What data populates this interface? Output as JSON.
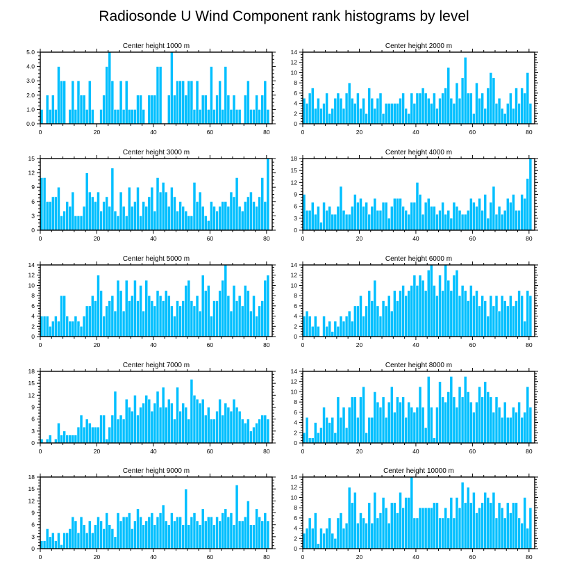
{
  "title": "Radiosonde U Wind Component rank histograms by level",
  "colors": {
    "bar": "#00bfff",
    "bar_edge": "#ffffff",
    "axis": "#000000"
  },
  "chart_data": [
    {
      "type": "bar",
      "title": "Center height 1000 m",
      "xlabel": "",
      "ylabel": "",
      "xlim": [
        0,
        82
      ],
      "ylim": [
        0,
        5
      ],
      "xticks": [
        0,
        20,
        40,
        60,
        80
      ],
      "xtick_labels": [
        "0",
        "20",
        "40",
        "60",
        "80"
      ],
      "yticks": [
        0,
        1,
        2,
        3,
        4,
        5
      ],
      "ytick_labels": [
        "0.0",
        "1.0",
        "2.0",
        "3.0",
        "4.0",
        "5.0"
      ],
      "values": [
        1,
        0,
        2,
        1,
        2,
        1,
        4,
        3,
        3,
        0,
        1,
        3,
        1,
        3,
        2,
        2,
        1,
        3,
        1,
        0,
        0,
        1,
        2,
        4,
        5,
        3,
        1,
        1,
        3,
        1,
        3,
        1,
        1,
        1,
        2,
        2,
        1,
        0,
        2,
        2,
        2,
        4,
        4,
        0,
        0,
        2,
        5,
        2,
        3,
        3,
        3,
        2,
        3,
        3,
        1,
        3,
        1,
        2,
        2,
        1,
        4,
        1,
        2,
        3,
        1,
        4,
        2,
        1,
        2,
        1,
        1,
        0,
        2,
        3,
        1,
        1,
        2,
        1,
        2,
        3,
        1
      ]
    },
    {
      "type": "bar",
      "title": "Center height 2000 m",
      "xlabel": "",
      "ylabel": "",
      "xlim": [
        0,
        82
      ],
      "ylim": [
        0,
        14
      ],
      "xticks": [
        0,
        20,
        40,
        60,
        80
      ],
      "xtick_labels": [
        "0",
        "20",
        "40",
        "60",
        "80"
      ],
      "yticks": [
        0,
        2,
        4,
        6,
        8,
        10,
        12,
        14
      ],
      "ytick_labels": [
        "0",
        "2",
        "4",
        "6",
        "8",
        "10",
        "12",
        "14"
      ],
      "values": [
        5,
        4,
        6,
        7,
        3,
        5,
        3,
        4,
        6,
        2,
        3,
        5,
        6,
        5,
        3,
        6,
        8,
        5,
        4,
        6,
        3,
        5,
        2,
        7,
        5,
        3,
        5,
        6,
        2,
        4,
        4,
        4,
        4,
        4,
        5,
        6,
        3,
        2,
        6,
        4,
        6,
        6,
        7,
        6,
        5,
        4,
        6,
        3,
        5,
        6,
        7,
        11,
        5,
        4,
        8,
        5,
        9,
        13,
        6,
        6,
        2,
        8,
        5,
        6,
        3,
        7,
        10,
        9,
        4,
        5,
        3,
        2,
        4,
        6,
        3,
        7,
        4,
        7,
        6,
        10,
        4
      ]
    },
    {
      "type": "bar",
      "title": "Center height 3000 m",
      "xlabel": "",
      "ylabel": "",
      "xlim": [
        0,
        82
      ],
      "ylim": [
        0,
        15
      ],
      "xticks": [
        0,
        20,
        40,
        60,
        80
      ],
      "xtick_labels": [
        "0",
        "20",
        "40",
        "60",
        "80"
      ],
      "yticks": [
        0,
        3,
        6,
        9,
        12,
        15
      ],
      "ytick_labels": [
        "0",
        "3",
        "6",
        "9",
        "12",
        "15"
      ],
      "values": [
        11,
        11,
        6,
        6,
        7,
        7,
        9,
        3,
        4,
        6,
        5,
        8,
        3,
        3,
        3,
        5,
        12,
        8,
        7,
        6,
        8,
        4,
        6,
        7,
        5,
        13,
        4,
        3,
        8,
        5,
        3,
        9,
        5,
        6,
        9,
        3,
        6,
        5,
        7,
        9,
        4,
        11,
        8,
        10,
        8,
        5,
        9,
        7,
        4,
        6,
        5,
        4,
        3,
        3,
        10,
        6,
        8,
        5,
        3,
        2,
        6,
        5,
        4,
        5,
        6,
        6,
        5,
        8,
        7,
        11,
        5,
        4,
        6,
        7,
        8,
        6,
        5,
        7,
        11,
        6,
        15
      ]
    },
    {
      "type": "bar",
      "title": "Center height 4000 m",
      "xlabel": "",
      "ylabel": "",
      "xlim": [
        0,
        82
      ],
      "ylim": [
        0,
        18
      ],
      "xticks": [
        0,
        20,
        40,
        60,
        80
      ],
      "xtick_labels": [
        "0",
        "20",
        "40",
        "60",
        "80"
      ],
      "yticks": [
        0,
        3,
        6,
        9,
        12,
        15,
        18
      ],
      "ytick_labels": [
        "0",
        "3",
        "6",
        "9",
        "12",
        "15",
        "18"
      ],
      "values": [
        9,
        5,
        5,
        7,
        4,
        6,
        2,
        7,
        5,
        6,
        4,
        4,
        6,
        11,
        5,
        4,
        4,
        6,
        9,
        7,
        8,
        6,
        7,
        4,
        6,
        8,
        5,
        5,
        7,
        7,
        3,
        6,
        8,
        8,
        8,
        6,
        5,
        4,
        7,
        7,
        12,
        9,
        4,
        7,
        8,
        6,
        6,
        4,
        5,
        7,
        4,
        5,
        3,
        7,
        6,
        5,
        4,
        4,
        5,
        8,
        7,
        6,
        8,
        5,
        9,
        3,
        7,
        11,
        4,
        6,
        4,
        5,
        8,
        7,
        9,
        5,
        5,
        9,
        8,
        13,
        18
      ]
    },
    {
      "type": "bar",
      "title": "Center height 5000 m",
      "xlabel": "",
      "ylabel": "",
      "xlim": [
        0,
        82
      ],
      "ylim": [
        0,
        14
      ],
      "xticks": [
        0,
        20,
        40,
        60,
        80
      ],
      "xtick_labels": [
        "0",
        "20",
        "40",
        "60",
        "80"
      ],
      "yticks": [
        0,
        2,
        4,
        6,
        8,
        10,
        12,
        14
      ],
      "ytick_labels": [
        "0",
        "2",
        "4",
        "6",
        "8",
        "10",
        "12",
        "14"
      ],
      "values": [
        4,
        4,
        4,
        2,
        3,
        4,
        3,
        8,
        8,
        4,
        3,
        3,
        4,
        3,
        2,
        4,
        6,
        6,
        8,
        7,
        12,
        9,
        4,
        6,
        7,
        8,
        5,
        11,
        9,
        5,
        11,
        7,
        8,
        11,
        7,
        10,
        5,
        11,
        8,
        7,
        6,
        9,
        8,
        7,
        9,
        8,
        6,
        4,
        7,
        6,
        7,
        10,
        11,
        7,
        6,
        8,
        5,
        12,
        9,
        10,
        4,
        7,
        7,
        9,
        11,
        14,
        8,
        5,
        10,
        7,
        8,
        6,
        10,
        9,
        5,
        8,
        4,
        6,
        7,
        11,
        12
      ]
    },
    {
      "type": "bar",
      "title": "Center height 6000 m",
      "xlabel": "",
      "ylabel": "",
      "xlim": [
        0,
        82
      ],
      "ylim": [
        0,
        14
      ],
      "xticks": [
        0,
        20,
        40,
        60,
        80
      ],
      "xtick_labels": [
        "0",
        "20",
        "40",
        "60",
        "80"
      ],
      "yticks": [
        0,
        2,
        4,
        6,
        8,
        10,
        12,
        14
      ],
      "ytick_labels": [
        "0",
        "2",
        "4",
        "6",
        "8",
        "10",
        "12",
        "14"
      ],
      "values": [
        4,
        5,
        4,
        2,
        4,
        2,
        0,
        4,
        2,
        3,
        1,
        3,
        2,
        4,
        3,
        4,
        5,
        3,
        6,
        6,
        8,
        4,
        6,
        9,
        7,
        11,
        6,
        4,
        7,
        6,
        8,
        5,
        9,
        7,
        9,
        10,
        8,
        9,
        10,
        12,
        10,
        12,
        11,
        9,
        13,
        14,
        10,
        8,
        12,
        9,
        14,
        11,
        9,
        12,
        13,
        8,
        10,
        9,
        7,
        10,
        8,
        9,
        6,
        8,
        7,
        4,
        8,
        6,
        8,
        5,
        8,
        7,
        6,
        8,
        6,
        7,
        9,
        8,
        3,
        9,
        8
      ]
    },
    {
      "type": "bar",
      "title": "Center height 7000 m",
      "xlabel": "",
      "ylabel": "",
      "xlim": [
        0,
        82
      ],
      "ylim": [
        0,
        18
      ],
      "xticks": [
        0,
        20,
        40,
        60,
        80
      ],
      "xtick_labels": [
        "0",
        "20",
        "40",
        "60",
        "80"
      ],
      "yticks": [
        0,
        3,
        6,
        9,
        12,
        15,
        18
      ],
      "ytick_labels": [
        "0",
        "3",
        "6",
        "9",
        "12",
        "15",
        "18"
      ],
      "values": [
        1,
        0,
        1,
        2,
        0,
        1,
        5,
        2,
        3,
        2,
        2,
        2,
        2,
        4,
        7,
        4,
        6,
        5,
        4,
        4,
        4,
        7,
        7,
        1,
        4,
        7,
        13,
        6,
        7,
        6,
        11,
        9,
        8,
        12,
        7,
        9,
        10,
        12,
        11,
        8,
        10,
        13,
        9,
        14,
        9,
        11,
        10,
        6,
        14,
        8,
        10,
        9,
        6,
        16,
        12,
        11,
        10,
        11,
        7,
        9,
        6,
        6,
        8,
        11,
        7,
        10,
        9,
        8,
        11,
        9,
        8,
        6,
        5,
        6,
        3,
        4,
        5,
        6,
        7,
        7,
        6
      ]
    },
    {
      "type": "bar",
      "title": "Center height 8000 m",
      "xlabel": "",
      "ylabel": "",
      "xlim": [
        0,
        82
      ],
      "ylim": [
        0,
        14
      ],
      "xticks": [
        0,
        20,
        40,
        60,
        80
      ],
      "xtick_labels": [
        "0",
        "20",
        "40",
        "60",
        "80"
      ],
      "yticks": [
        0,
        2,
        4,
        6,
        8,
        10,
        12,
        14
      ],
      "ytick_labels": [
        "0",
        "2",
        "4",
        "6",
        "8",
        "10",
        "12",
        "14"
      ],
      "values": [
        2,
        5,
        1,
        1,
        4,
        2,
        3,
        7,
        5,
        4,
        5,
        2,
        9,
        5,
        7,
        3,
        7,
        9,
        9,
        5,
        9,
        11,
        2,
        5,
        5,
        10,
        8,
        7,
        9,
        5,
        8,
        11,
        6,
        9,
        8,
        9,
        5,
        8,
        7,
        6,
        7,
        11,
        7,
        3,
        13,
        7,
        1,
        7,
        12,
        9,
        8,
        10,
        13,
        9,
        7,
        11,
        9,
        13,
        10,
        8,
        6,
        8,
        11,
        9,
        12,
        10,
        9,
        6,
        9,
        7,
        5,
        8,
        5,
        5,
        7,
        6,
        8,
        5,
        6,
        11,
        7
      ]
    },
    {
      "type": "bar",
      "title": "Center height 9000 m",
      "xlabel": "",
      "ylabel": "",
      "xlim": [
        0,
        82
      ],
      "ylim": [
        0,
        18
      ],
      "xticks": [
        0,
        20,
        40,
        60,
        80
      ],
      "xtick_labels": [
        "0",
        "20",
        "40",
        "60",
        "80"
      ],
      "yticks": [
        0,
        3,
        6,
        9,
        12,
        15,
        18
      ],
      "ytick_labels": [
        "0",
        "3",
        "6",
        "9",
        "12",
        "15",
        "18"
      ],
      "values": [
        2,
        2,
        5,
        3,
        4,
        2,
        4,
        1,
        4,
        4,
        5,
        8,
        7,
        4,
        8,
        6,
        4,
        7,
        4,
        6,
        8,
        7,
        5,
        9,
        6,
        5,
        3,
        9,
        7,
        8,
        8,
        9,
        5,
        7,
        10,
        8,
        6,
        7,
        8,
        9,
        6,
        8,
        9,
        11,
        7,
        6,
        9,
        7,
        8,
        8,
        6,
        15,
        6,
        8,
        9,
        7,
        6,
        10,
        7,
        8,
        8,
        6,
        8,
        7,
        9,
        10,
        8,
        9,
        6,
        16,
        7,
        7,
        8,
        12,
        6,
        6,
        10,
        8,
        7,
        9,
        7
      ]
    },
    {
      "type": "bar",
      "title": "Center height 10000 m",
      "xlabel": "",
      "ylabel": "",
      "xlim": [
        0,
        82
      ],
      "ylim": [
        0,
        14
      ],
      "xticks": [
        0,
        20,
        40,
        60,
        80
      ],
      "xtick_labels": [
        "0",
        "20",
        "40",
        "60",
        "80"
      ],
      "yticks": [
        0,
        2,
        4,
        6,
        8,
        10,
        12,
        14
      ],
      "ytick_labels": [
        "0",
        "2",
        "4",
        "6",
        "8",
        "10",
        "12",
        "14"
      ],
      "values": [
        3,
        4,
        6,
        4,
        7,
        1,
        4,
        3,
        4,
        6,
        3,
        2,
        6,
        7,
        4,
        5,
        12,
        9,
        11,
        5,
        7,
        6,
        5,
        9,
        5,
        11,
        6,
        7,
        10,
        8,
        5,
        9,
        9,
        7,
        11,
        8,
        10,
        10,
        14,
        6,
        6,
        8,
        8,
        8,
        8,
        8,
        9,
        9,
        6,
        6,
        8,
        6,
        10,
        6,
        10,
        8,
        13,
        9,
        12,
        9,
        11,
        7,
        8,
        9,
        11,
        10,
        9,
        11,
        6,
        9,
        8,
        6,
        9,
        7,
        9,
        9,
        6,
        5,
        10,
        4,
        8
      ]
    }
  ]
}
